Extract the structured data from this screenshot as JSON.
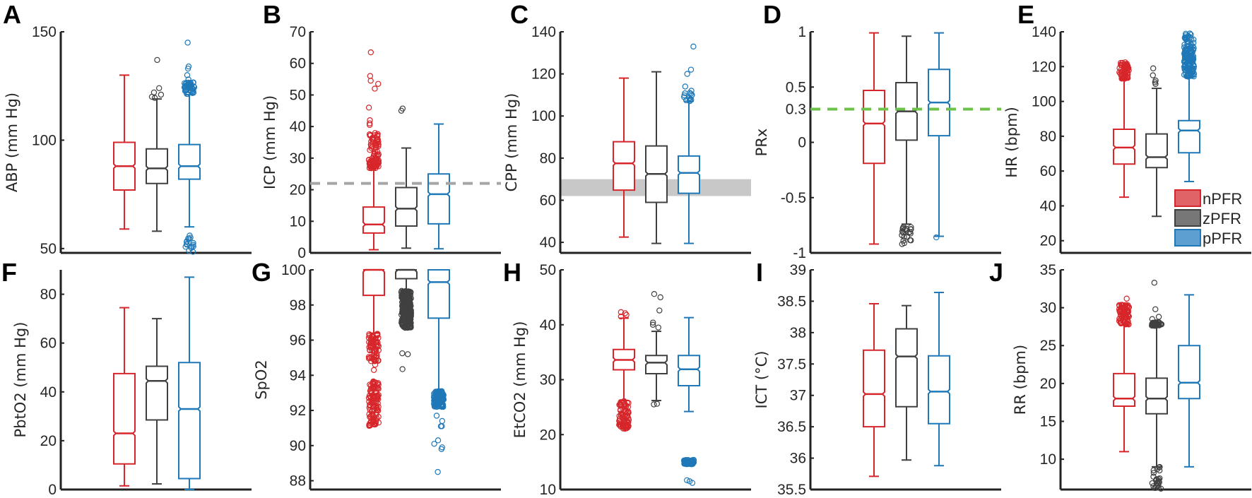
{
  "colors": {
    "nPFR": "#d7262b",
    "zPFR": "#404040",
    "pPFR": "#1f78b8",
    "nPFR_fill": "#e06467",
    "zPFR_fill": "#777777",
    "pPFR_fill": "#5d9fd0",
    "ref_gray": "#a6a6a6",
    "ref_green": "#6cc24a",
    "band_gray": "#c8c8c8"
  },
  "legend": {
    "panel": "E",
    "items": [
      "nPFR",
      "zPFR",
      "pPFR"
    ]
  },
  "chart_data": [
    {
      "panel": "A",
      "type": "box",
      "ylabel": "ABP (mm Hg)",
      "ylim": [
        48,
        150
      ],
      "yticks": [
        50,
        100,
        150
      ],
      "ytick_labels": [
        "50",
        "100",
        "150"
      ],
      "groups": [
        {
          "name": "nPFR",
          "lo": 59,
          "q1": 77,
          "med": 88,
          "q3": 99,
          "hi": 130,
          "outliers": [],
          "clusters": []
        },
        {
          "name": "zPFR",
          "lo": 58,
          "q1": 80,
          "med": 87,
          "q3": 96,
          "hi": 119,
          "outliers": [
            120,
            121,
            119.5,
            122,
            124,
            137
          ],
          "clusters": []
        },
        {
          "name": "pPFR",
          "lo": 60,
          "q1": 82,
          "med": 88,
          "q3": 98,
          "hi": 121,
          "outliers": [
            128,
            130,
            133,
            134,
            145,
            56,
            55,
            53,
            51,
            49,
            48.5
          ],
          "clusters": [
            {
              "lo": 121,
              "hi": 127,
              "n": 40
            },
            {
              "lo": 50,
              "hi": 55,
              "n": 10
            }
          ]
        }
      ]
    },
    {
      "panel": "B",
      "type": "box",
      "ylabel": "ICP (mm Hg)",
      "ylim": [
        0,
        70
      ],
      "yticks": [
        0,
        10,
        20,
        30,
        40,
        50,
        60,
        70
      ],
      "ytick_labels": [
        "0",
        "10",
        "20",
        "30",
        "40",
        "50",
        "60",
        "70"
      ],
      "ref_line": {
        "value": 22,
        "style": "dashed",
        "color": "ref_gray"
      },
      "groups": [
        {
          "name": "nPFR",
          "lo": 1,
          "q1": 6.3,
          "med": 9,
          "q3": 14.5,
          "hi": 26.8,
          "outliers": [
            41,
            42,
            40.5,
            46,
            52,
            53.5,
            54.5,
            56,
            63.5
          ],
          "clusters": [
            {
              "lo": 26.8,
              "hi": 29.5,
              "n": 50
            },
            {
              "lo": 29.5,
              "hi": 38,
              "n": 45
            }
          ]
        },
        {
          "name": "zPFR",
          "lo": 1.5,
          "q1": 8.5,
          "med": 14,
          "q3": 20.7,
          "hi": 33.2,
          "outliers": [
            45,
            45.7
          ],
          "clusters": []
        },
        {
          "name": "pPFR",
          "lo": 1.3,
          "q1": 9.2,
          "med": 18.6,
          "q3": 25,
          "hi": 40.8,
          "outliers": [],
          "clusters": []
        }
      ]
    },
    {
      "panel": "C",
      "type": "box",
      "ylabel": "CPP (mm Hg)",
      "ylim": [
        35,
        140
      ],
      "yticks": [
        40,
        60,
        80,
        100,
        120,
        140
      ],
      "ytick_labels": [
        "40",
        "60",
        "80",
        "100",
        "120",
        "140"
      ],
      "ref_band": {
        "lo": 62,
        "hi": 70,
        "color": "band_gray"
      },
      "groups": [
        {
          "name": "nPFR",
          "lo": 42.5,
          "q1": 64.8,
          "med": 77.5,
          "q3": 87.8,
          "hi": 118,
          "outliers": [],
          "clusters": []
        },
        {
          "name": "zPFR",
          "lo": 39.5,
          "q1": 59,
          "med": 72.5,
          "q3": 85.8,
          "hi": 121,
          "outliers": [],
          "clusters": []
        },
        {
          "name": "pPFR",
          "lo": 39.5,
          "q1": 63.3,
          "med": 73,
          "q3": 81,
          "hi": 107,
          "outliers": [
            108,
            109,
            110,
            111,
            112,
            114,
            120,
            122,
            133
          ],
          "clusters": [
            {
              "lo": 107,
              "hi": 111,
              "n": 10
            }
          ]
        }
      ]
    },
    {
      "panel": "D",
      "type": "box",
      "ylabel": "PRx",
      "ylim": [
        -1,
        1
      ],
      "yticks": [
        -1,
        -0.5,
        0,
        0.3,
        0.5,
        1
      ],
      "ytick_labels": [
        "-1",
        "-0.5",
        "0",
        "0.3",
        "0.5",
        "1"
      ],
      "ref_line": {
        "value": 0.3,
        "style": "dashed",
        "color": "ref_green"
      },
      "groups": [
        {
          "name": "nPFR",
          "lo": -0.92,
          "q1": -0.19,
          "med": 0.17,
          "q3": 0.47,
          "hi": 0.99,
          "outliers": [],
          "clusters": []
        },
        {
          "name": "zPFR",
          "lo": -0.74,
          "q1": 0.02,
          "med": 0.28,
          "q3": 0.54,
          "hi": 0.96,
          "outliers": [],
          "clusters": [
            {
              "lo": -0.93,
              "hi": -0.75,
              "n": 22
            }
          ]
        },
        {
          "name": "pPFR",
          "lo": -0.85,
          "q1": 0.06,
          "med": 0.36,
          "q3": 0.66,
          "hi": 0.99,
          "outliers": [
            -0.86
          ],
          "clusters": []
        }
      ]
    },
    {
      "panel": "E",
      "type": "box",
      "ylabel": "HR (bpm)",
      "ylim": [
        13,
        140
      ],
      "yticks": [
        20,
        40,
        60,
        80,
        100,
        120,
        140
      ],
      "ytick_labels": [
        "20",
        "40",
        "60",
        "80",
        "100",
        "120",
        "140"
      ],
      "groups": [
        {
          "name": "nPFR",
          "lo": 45,
          "q1": 64,
          "med": 73.5,
          "q3": 84,
          "hi": 113,
          "outliers": [],
          "clusters": [
            {
              "lo": 113,
              "hi": 122.5,
              "n": 60
            }
          ]
        },
        {
          "name": "zPFR",
          "lo": 34,
          "q1": 62,
          "med": 68,
          "q3": 81.3,
          "hi": 107.5,
          "outliers": [
            110,
            111,
            112,
            115,
            119
          ],
          "clusters": []
        },
        {
          "name": "pPFR",
          "lo": 54,
          "q1": 70.5,
          "med": 83.3,
          "q3": 89,
          "hi": 114,
          "outliers": [],
          "clusters": [
            {
              "lo": 114,
              "hi": 130,
              "n": 120
            },
            {
              "lo": 130,
              "hi": 139,
              "n": 30
            }
          ]
        }
      ]
    },
    {
      "panel": "F",
      "type": "box",
      "ylabel": "PbtO2 (mm Hg)",
      "ylim": [
        0,
        90
      ],
      "yticks": [
        0,
        20,
        40,
        60,
        80
      ],
      "ytick_labels": [
        "0",
        "20",
        "40",
        "60",
        "80"
      ],
      "groups": [
        {
          "name": "nPFR",
          "lo": 1.5,
          "q1": 10.5,
          "med": 23,
          "q3": 47.5,
          "hi": 74.5,
          "outliers": [],
          "clusters": []
        },
        {
          "name": "zPFR",
          "lo": 2.3,
          "q1": 28.5,
          "med": 44.5,
          "q3": 50.5,
          "hi": 70,
          "outliers": [],
          "clusters": []
        },
        {
          "name": "pPFR",
          "lo": 0,
          "q1": 4.5,
          "med": 33,
          "q3": 52,
          "hi": 87,
          "outliers": [],
          "clusters": []
        }
      ]
    },
    {
      "panel": "G",
      "type": "box",
      "ylabel": "SpO2",
      "ylim": [
        87.5,
        100
      ],
      "yticks": [
        88,
        90,
        92,
        94,
        96,
        98,
        100
      ],
      "ytick_labels": [
        "88",
        "90",
        "92",
        "94",
        "96",
        "98",
        "100"
      ],
      "groups": [
        {
          "name": "nPFR",
          "lo": 96.4,
          "q1": 98.55,
          "med": 100,
          "q3": 100,
          "hi": 100,
          "outliers": [
            94.3,
            94.6
          ],
          "clusters": [
            {
              "lo": 94.8,
              "hi": 96.4,
              "n": 70
            },
            {
              "lo": 91.1,
              "hi": 93.7,
              "n": 110
            }
          ]
        },
        {
          "name": "zPFR",
          "lo": 98.8,
          "q1": 99.5,
          "med": 100,
          "q3": 100,
          "hi": 100,
          "outliers": [
            95.2,
            95.25,
            94.35
          ],
          "clusters": [
            {
              "lo": 96.7,
              "hi": 98.8,
              "n": 250
            }
          ]
        },
        {
          "name": "pPFR",
          "lo": 93.1,
          "q1": 97.25,
          "med": 99.3,
          "q3": 100,
          "hi": 100,
          "outliers": [
            91.7,
            91.4,
            91.1,
            91.1,
            90.3,
            90.1,
            89.9,
            89.8,
            88.5
          ],
          "clusters": [
            {
              "lo": 92.2,
              "hi": 93.1,
              "n": 140
            }
          ]
        }
      ]
    },
    {
      "panel": "H",
      "type": "box",
      "ylabel": "EtCO2 (mm Hg)",
      "ylim": [
        10,
        50
      ],
      "yticks": [
        10,
        20,
        30,
        40,
        50
      ],
      "ytick_labels": [
        "10",
        "20",
        "30",
        "40",
        "50"
      ],
      "groups": [
        {
          "name": "nPFR",
          "lo": 26.2,
          "q1": 31.8,
          "med": 33.6,
          "q3": 35.5,
          "hi": 41.2,
          "outliers": [
            41.5,
            41.8,
            42.1,
            42.3
          ],
          "clusters": [
            {
              "lo": 21,
              "hi": 26.2,
              "n": 80
            }
          ]
        },
        {
          "name": "zPFR",
          "lo": 26.2,
          "q1": 31.1,
          "med": 33.1,
          "q3": 34.4,
          "hi": 38.8,
          "outliers": [
            25.5,
            25.6,
            39.5,
            40,
            40.4,
            42.6,
            45,
            45.6
          ],
          "clusters": []
        },
        {
          "name": "pPFR",
          "lo": 24.2,
          "q1": 28.9,
          "med": 31.9,
          "q3": 34.4,
          "hi": 41.3,
          "outliers": [
            11.2,
            11.5,
            11.7
          ],
          "clusters": [
            {
              "lo": 14.6,
              "hi": 15.4,
              "n": 80
            }
          ]
        }
      ]
    },
    {
      "panel": "I",
      "type": "box",
      "ylabel": "ICT (°C)",
      "ylim": [
        35.5,
        39
      ],
      "yticks": [
        35.5,
        36,
        36.5,
        37,
        37.5,
        38,
        38.5,
        39
      ],
      "ytick_labels": [
        "35.5",
        "36",
        "36.5",
        "37",
        "37.5",
        "38",
        "38.5",
        "39"
      ],
      "groups": [
        {
          "name": "nPFR",
          "lo": 35.71,
          "q1": 36.5,
          "med": 37.02,
          "q3": 37.72,
          "hi": 38.46,
          "outliers": [],
          "clusters": []
        },
        {
          "name": "zPFR",
          "lo": 35.97,
          "q1": 36.82,
          "med": 37.62,
          "q3": 38.06,
          "hi": 38.43,
          "outliers": [],
          "clusters": []
        },
        {
          "name": "pPFR",
          "lo": 35.88,
          "q1": 36.55,
          "med": 37.06,
          "q3": 37.63,
          "hi": 38.64,
          "outliers": [],
          "clusters": []
        }
      ]
    },
    {
      "panel": "J",
      "type": "box",
      "ylabel": "RR (bpm)",
      "ylim": [
        6,
        35
      ],
      "yticks": [
        10,
        15,
        20,
        25,
        30,
        35
      ],
      "ytick_labels": [
        "10",
        "15",
        "20",
        "25",
        "30",
        "35"
      ],
      "groups": [
        {
          "name": "nPFR",
          "lo": 11,
          "q1": 17,
          "med": 18,
          "q3": 21.3,
          "hi": 27.7,
          "outliers": [
            31.2
          ],
          "clusters": [
            {
              "lo": 27.7,
              "hi": 30.4,
              "n": 80
            }
          ]
        },
        {
          "name": "zPFR",
          "lo": 9,
          "q1": 16,
          "med": 18,
          "q3": 20.7,
          "hi": 27.5,
          "outliers": [
            28.5,
            28.8,
            29.8,
            33.3
          ],
          "clusters": [
            {
              "lo": 27.6,
              "hi": 28.1,
              "n": 40
            },
            {
              "lo": 6,
              "hi": 9,
              "n": 25
            }
          ]
        },
        {
          "name": "pPFR",
          "lo": 9,
          "q1": 18,
          "med": 20.1,
          "q3": 25,
          "hi": 31.7,
          "outliers": [],
          "clusters": []
        }
      ]
    }
  ]
}
